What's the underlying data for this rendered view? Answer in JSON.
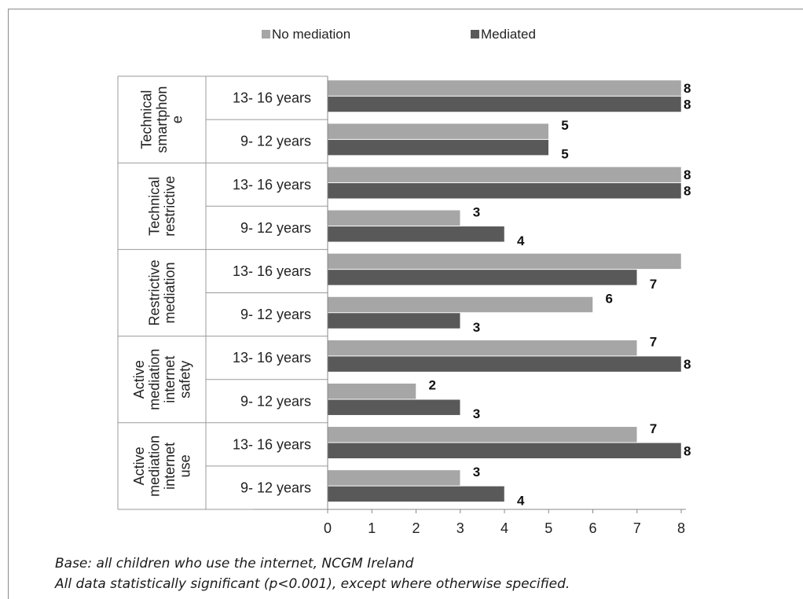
{
  "chart_data": {
    "type": "bar",
    "orientation": "horizontal",
    "legend": {
      "position": "top",
      "items": [
        {
          "name": "No mediation",
          "color": "#a6a6a6"
        },
        {
          "name": "Mediated",
          "color": "#595959"
        }
      ]
    },
    "groups": [
      {
        "name": "Technical smartphon e",
        "label_lines": [
          "Technical",
          "smartphon",
          "e"
        ]
      },
      {
        "name": "Technical restrictive",
        "label_lines": [
          "Technical",
          "restrictive"
        ]
      },
      {
        "name": "Restrictive mediation",
        "label_lines": [
          "Restrictive",
          "mediation"
        ]
      },
      {
        "name": "Active mediation internet safety",
        "label_lines": [
          "Active",
          "mediation",
          "internet",
          "safety"
        ]
      },
      {
        "name": "Active mediation internet use",
        "label_lines": [
          "Active",
          "mediation",
          "internet",
          "use"
        ]
      }
    ],
    "categories": [
      {
        "group": 0,
        "label": "13- 16 years"
      },
      {
        "group": 0,
        "label": "9- 12 years"
      },
      {
        "group": 1,
        "label": "13- 16 years"
      },
      {
        "group": 1,
        "label": "9- 12 years"
      },
      {
        "group": 2,
        "label": "13- 16 years"
      },
      {
        "group": 2,
        "label": "9- 12 years"
      },
      {
        "group": 3,
        "label": "13- 16 years"
      },
      {
        "group": 3,
        "label": "9- 12 years"
      },
      {
        "group": 4,
        "label": "13- 16 years"
      },
      {
        "group": 4,
        "label": "9- 12 years"
      }
    ],
    "series": [
      {
        "name": "No mediation",
        "values": [
          8,
          5,
          8,
          3,
          8,
          6,
          7,
          2,
          7,
          3
        ],
        "labels": [
          "8",
          "5",
          "8",
          "3",
          "",
          "6",
          "7",
          "2",
          "7",
          "3"
        ]
      },
      {
        "name": "Mediated",
        "values": [
          8,
          5,
          8,
          4,
          7,
          3,
          8,
          3,
          8,
          4
        ],
        "labels": [
          "8",
          "5",
          "8",
          "4",
          "7",
          "3",
          "8",
          "3",
          "8",
          "4"
        ]
      }
    ],
    "xlim": [
      0,
      8
    ],
    "xticks": [
      "0",
      "1",
      "2",
      "3",
      "4",
      "5",
      "6",
      "7",
      "8"
    ],
    "grid": false
  },
  "notes": [
    "Base: all children who use the internet, NCGM Ireland",
    "All data statistically significant (p<0.001), except where otherwise specified."
  ]
}
